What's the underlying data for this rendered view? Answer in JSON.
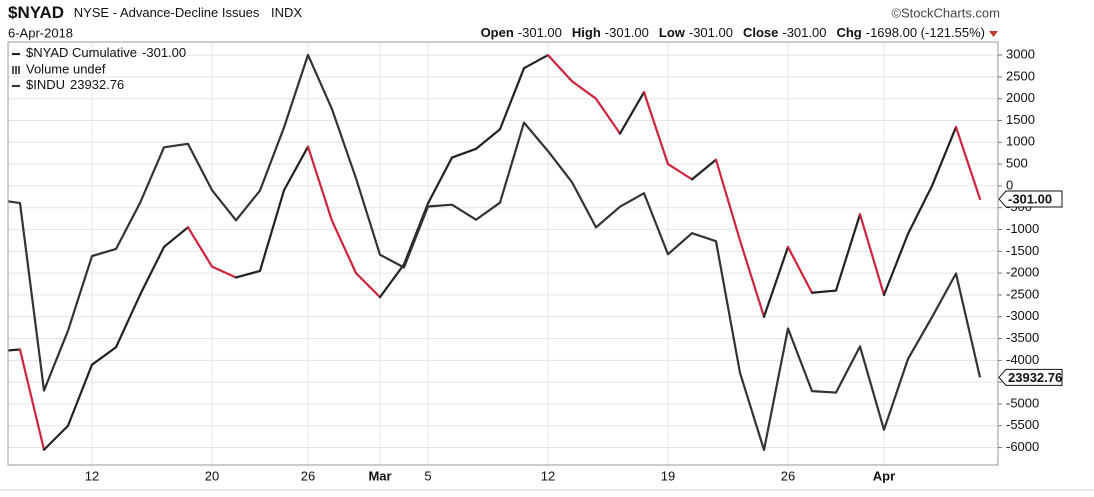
{
  "chart_data": {
    "type": "line",
    "header": {
      "symbol": "$NYAD",
      "description": "NYSE - Advance-Decline Issues",
      "exchange": "INDX",
      "source": "©StockCharts.com",
      "date": "6-Apr-2018",
      "quote": [
        {
          "label": "Open",
          "value": "-301.00"
        },
        {
          "label": "High",
          "value": "-301.00"
        },
        {
          "label": "Low",
          "value": "-301.00"
        },
        {
          "label": "Close",
          "value": "-301.00"
        },
        {
          "label": "Chg",
          "value": "-1698.00 (-121.55%)"
        }
      ]
    },
    "categories": [
      null,
      null,
      null,
      null,
      "12",
      null,
      null,
      null,
      null,
      "20",
      null,
      null,
      null,
      "26",
      null,
      null,
      "Mar",
      null,
      "5",
      null,
      null,
      null,
      null,
      "12",
      null,
      null,
      null,
      null,
      "19",
      null,
      null,
      null,
      null,
      "26",
      null,
      null,
      null,
      "Apr",
      null,
      null,
      null,
      null
    ],
    "series": [
      {
        "name": "$NYAD Cumulative",
        "last_label": "-301.00",
        "color": "#222222",
        "down_color": "#d0233c",
        "values": [
          -3800,
          -3750,
          -6050,
          -5500,
          -4100,
          -3700,
          -2500,
          -1400,
          -950,
          -1850,
          -2100,
          -1950,
          -100,
          900,
          -800,
          -2000,
          -2550,
          -1800,
          -400,
          650,
          850,
          1300,
          2700,
          3000,
          2400,
          2000,
          1200,
          2150,
          500,
          150,
          600,
          -1250,
          -3000,
          -1400,
          -2450,
          -2400,
          -650,
          -2500,
          -1100,
          0,
          1350,
          -301
        ]
      },
      {
        "name": "$INDU",
        "last_label": "23932.76",
        "color": "#333333",
        "axis": "y2",
        "values": [
          24912,
          24893,
          23860,
          24190,
          24601,
          24640,
          24893,
          25200,
          25219,
          24964,
          24798,
          24962,
          25309,
          25709,
          25410,
          25029,
          24608,
          24538,
          24874,
          24884,
          24801,
          24895,
          25336,
          25179,
          25008,
          24759,
          24873,
          24947,
          24611,
          24727,
          24683,
          23958,
          23533,
          24202,
          23857,
          23849,
          24103,
          23644,
          24034,
          24264,
          24505,
          23932.76
        ]
      }
    ],
    "legend_extra": "Volume undef",
    "legend": "top-left",
    "ylim": [
      -6400,
      3300
    ],
    "yticks": [
      3000,
      2500,
      2000,
      1500,
      1000,
      500,
      0,
      -500,
      -1000,
      -1500,
      -2000,
      -2500,
      -3000,
      -3500,
      -4000,
      -4500,
      -5000,
      -5500,
      -6000
    ],
    "y2lim": [
      23450,
      25780
    ],
    "grid": true
  }
}
